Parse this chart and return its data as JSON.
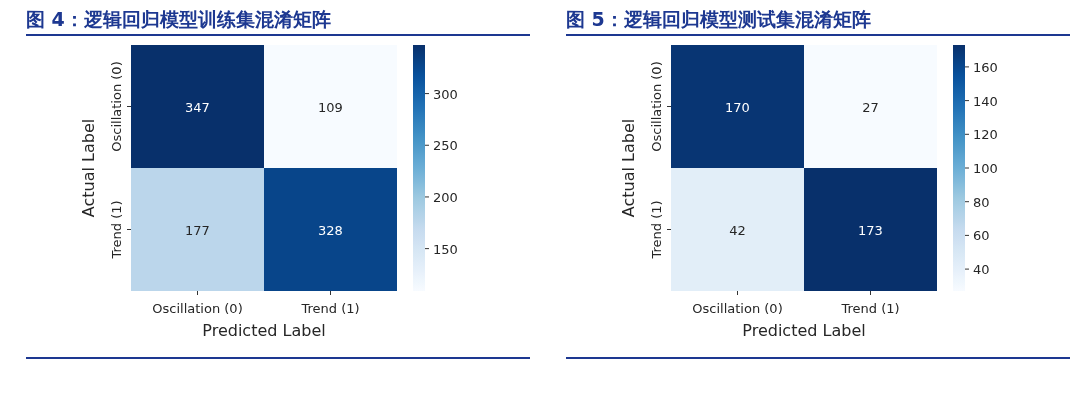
{
  "chart_data": [
    {
      "type": "heatmap",
      "title": "图 4：逻辑回归模型训练集混淆矩阵",
      "xlabel": "Predicted Label",
      "ylabel": "Actual Label",
      "categories": [
        "Oscillation (0)",
        "Trend (1)"
      ],
      "y_categories": [
        "Oscillation (0)",
        "Trend (1)"
      ],
      "cells": [
        [
          347,
          109
        ],
        [
          177,
          328
        ]
      ],
      "clim": [
        109,
        347
      ],
      "cticks": [
        150,
        200,
        250,
        300
      ],
      "data_labels": true
    },
    {
      "type": "heatmap",
      "title": "图 5：逻辑回归模型测试集混淆矩阵",
      "xlabel": "Predicted Label",
      "ylabel": "Actual Label",
      "categories": [
        "Oscillation (0)",
        "Trend (1)"
      ],
      "y_categories": [
        "Oscillation (0)",
        "Trend (1)"
      ],
      "cells": [
        [
          170,
          27
        ],
        [
          42,
          173
        ]
      ],
      "clim": [
        27,
        173
      ],
      "cticks": [
        40,
        60,
        80,
        100,
        120,
        140,
        160
      ],
      "data_labels": true
    }
  ]
}
